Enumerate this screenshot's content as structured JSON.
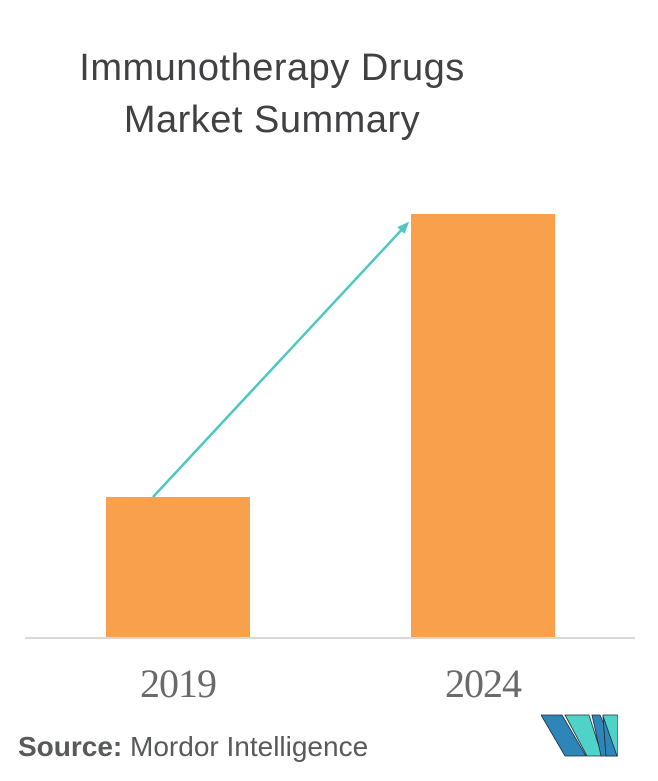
{
  "title": {
    "line1": "Immunotherapy Drugs",
    "line2": "Market Summary"
  },
  "source": {
    "label": "Source:",
    "text": " Mordor Intelligence"
  },
  "logo": {
    "name": "mordor-intelligence-logo"
  },
  "colors": {
    "background": "#FFFFFF",
    "bar_orange": "#F9A04D",
    "arrow_teal": "#4FC7C0",
    "title_gray": "#414042",
    "label_gray": "#6A6A6D",
    "source_gray": "#58595B",
    "axis_line": "#D9D9D9",
    "logo_blue": "#2E86B8",
    "logo_teal": "#4FD2C8",
    "logo_outline": "#1C2B39"
  },
  "chart_data": {
    "type": "bar",
    "title": "Immunotherapy Drugs Market Summary",
    "categories": [
      "2019",
      "2024"
    ],
    "values": [
      1,
      3
    ],
    "value_scale": "relative — chart shows no y-axis, gridlines or data labels; 2024 bar is ~3x the height of the 2019 bar",
    "xlabel": "",
    "ylabel": "",
    "grid": false,
    "legend": false,
    "bar_color": "#F9A04D",
    "annotations": [
      {
        "type": "arrow",
        "description": "growth arrow from top of 2019 bar to top-left of 2024 bar",
        "color": "#4FC7C0"
      }
    ]
  }
}
